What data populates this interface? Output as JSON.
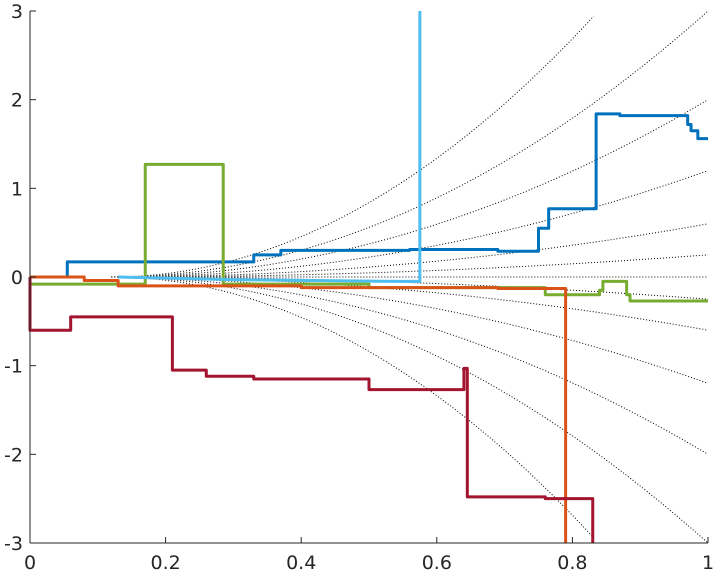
{
  "chart_data": {
    "type": "line",
    "title": "",
    "xlabel": "",
    "ylabel": "",
    "xlim": [
      0,
      1
    ],
    "ylim": [
      -3,
      3
    ],
    "grid": false,
    "legend": "none",
    "xticks": [
      {
        "value": 0,
        "label": "0"
      },
      {
        "value": 0.2,
        "label": "0.2"
      },
      {
        "value": 0.4,
        "label": "0.4"
      },
      {
        "value": 0.6,
        "label": "0.6"
      },
      {
        "value": 0.8,
        "label": "0.8"
      },
      {
        "value": 1,
        "label": "1"
      }
    ],
    "yticks": [
      {
        "value": -3,
        "label": "-3"
      },
      {
        "value": -2,
        "label": "-2"
      },
      {
        "value": -1,
        "label": "-1"
      },
      {
        "value": 0,
        "label": "0"
      },
      {
        "value": 1,
        "label": "1"
      },
      {
        "value": 2,
        "label": "2"
      },
      {
        "value": 3,
        "label": "3"
      }
    ],
    "reference_curves": {
      "style": "dotted",
      "color": "#000000",
      "coefficients": [
        0,
        0.25,
        -0.25,
        0.6,
        -0.6,
        1.2,
        -1.2,
        2.0,
        -2.0,
        3.0,
        -3.0,
        4.5,
        -4.5
      ],
      "reference_x": 0.12
    },
    "series": [
      {
        "color": "#0072BD",
        "x": [
          0.055,
          0.055,
          0.33,
          0.33,
          0.37,
          0.37,
          0.56,
          0.56,
          0.69,
          0.69,
          0.75,
          0.75,
          0.765,
          0.765,
          0.835,
          0.835,
          0.87,
          0.87,
          0.97,
          0.97,
          0.975,
          0.975,
          0.985,
          0.985,
          1.0
        ],
        "y": [
          0.0,
          0.17,
          0.17,
          0.25,
          0.25,
          0.3,
          0.3,
          0.31,
          0.31,
          0.29,
          0.29,
          0.55,
          0.55,
          0.77,
          0.77,
          1.84,
          1.84,
          1.82,
          1.82,
          1.72,
          1.72,
          1.65,
          1.65,
          1.56,
          1.56
        ]
      },
      {
        "color": "#77AC30",
        "x": [
          0.0,
          0.17,
          0.17,
          0.285,
          0.285,
          0.5,
          0.5,
          0.76,
          0.76,
          0.84,
          0.84,
          0.845,
          0.845,
          0.88,
          0.88,
          0.885,
          0.885,
          1.0
        ],
        "y": [
          -0.08,
          -0.08,
          1.27,
          1.27,
          -0.08,
          -0.08,
          -0.12,
          -0.12,
          -0.2,
          -0.2,
          -0.15,
          -0.15,
          -0.05,
          -0.05,
          -0.2,
          -0.2,
          -0.27,
          -0.27
        ]
      },
      {
        "color": "#4DBEEE",
        "x": [
          0.13,
          0.3,
          0.55,
          0.575,
          0.575
        ],
        "y": [
          0.0,
          -0.03,
          -0.05,
          -0.05,
          3.0
        ]
      },
      {
        "color": "#D95319",
        "x": [
          0.0,
          0.08,
          0.08,
          0.13,
          0.13,
          0.4,
          0.4,
          0.69,
          0.69,
          0.79,
          0.79
        ],
        "y": [
          0.0,
          0.0,
          -0.04,
          -0.04,
          -0.1,
          -0.1,
          -0.12,
          -0.12,
          -0.13,
          -0.13,
          -3.0
        ]
      },
      {
        "color": "#A2142F",
        "x": [
          0.0,
          0.0,
          0.06,
          0.06,
          0.21,
          0.21,
          0.26,
          0.26,
          0.33,
          0.33,
          0.5,
          0.5,
          0.64,
          0.64,
          0.645,
          0.645,
          0.76,
          0.76,
          0.83,
          0.83
        ],
        "y": [
          0.0,
          -0.6,
          -0.6,
          -0.45,
          -0.45,
          -1.05,
          -1.05,
          -1.12,
          -1.12,
          -1.15,
          -1.15,
          -1.27,
          -1.27,
          -1.03,
          -1.03,
          -2.48,
          -2.48,
          -2.5,
          -2.5,
          -3.0
        ]
      }
    ]
  }
}
